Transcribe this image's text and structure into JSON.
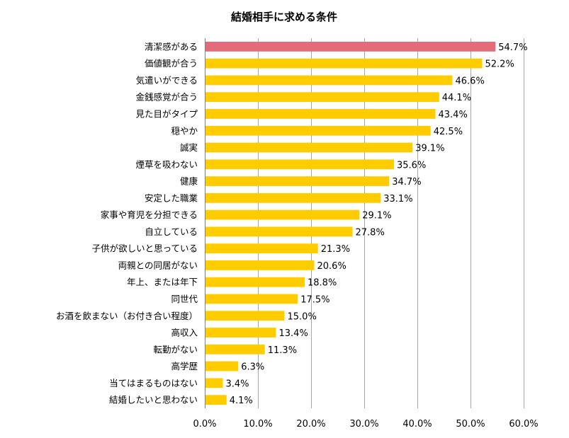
{
  "chart_data": {
    "type": "bar",
    "orientation": "horizontal",
    "title": "結婚相手に求める条件",
    "categories": [
      "清潔感がある",
      "価値観が合う",
      "気遣いができる",
      "金銭感覚が合う",
      "見た目がタイプ",
      "穏やか",
      "誠実",
      "煙草を吸わない",
      "健康",
      "安定した職業",
      "家事や育児を分担できる",
      "自立している",
      "子供が欲しいと思っている",
      "両親との同居がない",
      "年上、または年下",
      "同世代",
      "お酒を飲まない（お付き合い程度）",
      "高収入",
      "転勤がない",
      "高学歴",
      "当てはまるものはない",
      "結婚したいと思わない"
    ],
    "values": [
      54.7,
      52.2,
      46.6,
      44.1,
      43.4,
      42.5,
      39.1,
      35.6,
      34.7,
      33.1,
      29.1,
      27.8,
      21.3,
      20.6,
      18.8,
      17.5,
      15.0,
      13.4,
      11.3,
      6.3,
      3.4,
      4.1
    ],
    "value_labels": [
      "54.7%",
      "52.2%",
      "46.6%",
      "44.1%",
      "43.4%",
      "42.5%",
      "39.1%",
      "35.6%",
      "34.7%",
      "33.1%",
      "29.1%",
      "27.8%",
      "21.3%",
      "20.6%",
      "18.8%",
      "17.5%",
      "15.0%",
      "13.4%",
      "11.3%",
      "6.3%",
      "3.4%",
      "4.1%"
    ],
    "xlim": [
      0,
      60
    ],
    "x_ticks": [
      0,
      10,
      20,
      30,
      40,
      50,
      60
    ],
    "x_tick_labels": [
      "0.0%",
      "10.0%",
      "20.0%",
      "30.0%",
      "40.0%",
      "50.0%",
      "60.0%"
    ],
    "grid": true,
    "colors": {
      "highlight": "#E46C7A",
      "bar": "#FFCC00",
      "grid": "#A6A6A6"
    },
    "highlight_index": 0
  }
}
